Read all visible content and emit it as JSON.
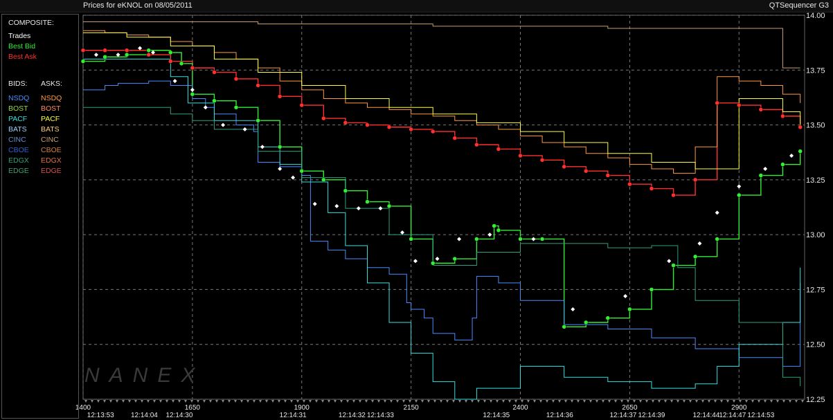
{
  "header": {
    "title_left": "Prices for  eKNOL  on  08/05/2011",
    "title_right": "QTSequencer G3"
  },
  "legend": {
    "composite_heading": "COMPOSITE:",
    "composite": [
      {
        "label": "Trades",
        "color": "#ffffff"
      },
      {
        "label": "Best Bid",
        "color": "#33ee33"
      },
      {
        "label": "Best Ask",
        "color": "#ff3030"
      }
    ],
    "bids_heading": "BIDS:",
    "asks_heading": "ASKS:",
    "exchanges": [
      {
        "bid": "NSDQ",
        "ask": "NSDQ",
        "bid_color": "#4a8cff",
        "ask_color": "#ff9a40"
      },
      {
        "bid": "BOST",
        "ask": "BOST",
        "bid_color": "#9ad84a",
        "ask_color": "#ff8a5a"
      },
      {
        "bid": "PACF",
        "ask": "PACF",
        "bid_color": "#38e0e0",
        "ask_color": "#ffff40"
      },
      {
        "bid": "BATS",
        "ask": "BATS",
        "bid_color": "#9fd0ff",
        "ask_color": "#ffd070"
      },
      {
        "bid": "CINC",
        "ask": "CINC",
        "bid_color": "#6a8cc8",
        "ask_color": "#c8a070"
      },
      {
        "bid": "CBOE",
        "ask": "CBOE",
        "bid_color": "#3060d0",
        "ask_color": "#d08040"
      },
      {
        "bid": "EDGX",
        "ask": "EDGX",
        "bid_color": "#30a080",
        "ask_color": "#e07040"
      },
      {
        "bid": "EDGE",
        "ask": "EDGE",
        "bid_color": "#40a070",
        "ask_color": "#d05050"
      }
    ]
  },
  "watermark": "NANEX",
  "chart_data": {
    "type": "line",
    "ylim": [
      12.25,
      14.0
    ],
    "xlim": [
      1400,
      3050
    ],
    "y_ticks": [
      "12.25",
      "12.50",
      "12.75",
      "13.00",
      "13.25",
      "13.50",
      "13.75",
      "14.00"
    ],
    "x_ticks": [
      "1400",
      "1650",
      "1900",
      "2150",
      "2400",
      "2650",
      "2900"
    ],
    "time_labels": [
      {
        "x": 1440,
        "t": "12:13:53"
      },
      {
        "x": 1540,
        "t": "12:14:04"
      },
      {
        "x": 1620,
        "t": "12:14:30"
      },
      {
        "x": 1880,
        "t": "12:14:31"
      },
      {
        "x": 2015,
        "t": "12:14:32"
      },
      {
        "x": 2080,
        "t": "12:14:33"
      },
      {
        "x": 2345,
        "t": "12:14:35"
      },
      {
        "x": 2490,
        "t": "12:14:36"
      },
      {
        "x": 2635,
        "t": "12:14:37"
      },
      {
        "x": 2700,
        "t": "12:14:39"
      },
      {
        "x": 2825,
        "t": "12:14:44"
      },
      {
        "x": 2885,
        "t": "12:14:47"
      },
      {
        "x": 2950,
        "t": "12:14:53"
      }
    ],
    "series": [
      {
        "name": "Best Ask",
        "color": "#ff3030",
        "x": [
          1400,
          1450,
          1500,
          1550,
          1600,
          1650,
          1700,
          1750,
          1800,
          1850,
          1900,
          1950,
          2000,
          2050,
          2100,
          2150,
          2200,
          2250,
          2300,
          2350,
          2400,
          2450,
          2500,
          2550,
          2600,
          2650,
          2700,
          2750,
          2800,
          2850,
          2900,
          2950,
          3000,
          3040
        ],
        "y": [
          13.84,
          13.84,
          13.84,
          13.82,
          13.79,
          13.76,
          13.74,
          13.71,
          13.68,
          13.63,
          13.59,
          13.53,
          13.51,
          13.5,
          13.49,
          13.48,
          13.47,
          13.44,
          13.41,
          13.39,
          13.36,
          13.34,
          13.31,
          13.29,
          13.27,
          13.23,
          13.21,
          13.18,
          13.25,
          13.6,
          13.59,
          13.57,
          13.54,
          13.49
        ]
      },
      {
        "name": "Best Bid",
        "color": "#33ee33",
        "x": [
          1400,
          1450,
          1500,
          1550,
          1600,
          1625,
          1650,
          1700,
          1750,
          1800,
          1850,
          1900,
          1950,
          2000,
          2050,
          2100,
          2150,
          2200,
          2250,
          2300,
          2340,
          2350,
          2400,
          2450,
          2500,
          2550,
          2600,
          2650,
          2700,
          2750,
          2800,
          2850,
          2900,
          2950,
          3000,
          3040
        ],
        "y": [
          13.79,
          13.81,
          13.82,
          13.84,
          13.83,
          13.78,
          13.64,
          13.61,
          13.58,
          13.52,
          13.4,
          13.29,
          13.25,
          13.2,
          13.15,
          13.13,
          12.98,
          12.87,
          12.89,
          12.98,
          13.04,
          13.02,
          12.98,
          12.98,
          12.58,
          12.6,
          12.62,
          12.66,
          12.75,
          12.86,
          12.9,
          12.98,
          13.18,
          13.27,
          13.32,
          13.38
        ]
      },
      {
        "name": "Trades",
        "color": "#ffffff",
        "x": [
          1430,
          1480,
          1530,
          1560,
          1610,
          1650,
          1680,
          1720,
          1770,
          1810,
          1850,
          1880,
          1930,
          1980,
          2030,
          2080,
          2130,
          2160,
          2210,
          2260,
          2330,
          2430,
          2520,
          2640,
          2740,
          2810,
          2850,
          2900,
          2960,
          3020
        ],
        "y": [
          13.82,
          13.82,
          13.85,
          13.83,
          13.7,
          13.66,
          13.58,
          13.5,
          13.48,
          13.4,
          13.3,
          13.26,
          13.14,
          13.13,
          13.12,
          13.12,
          13.01,
          12.88,
          12.89,
          12.98,
          13.0,
          12.98,
          12.66,
          12.72,
          12.88,
          12.96,
          13.1,
          13.22,
          13.3,
          13.36
        ]
      },
      {
        "name": "NSDQ",
        "color": "#4a8cff",
        "x": [
          1400,
          1450,
          1480,
          1550,
          1600,
          1650,
          1680,
          1700,
          1750,
          1790,
          1800,
          1850,
          1900,
          1920,
          1960,
          2000,
          2050,
          2100,
          2140,
          2150,
          2180,
          2200,
          2250,
          2290,
          2300,
          2350,
          2400,
          2500,
          2600,
          2700,
          2800,
          2900,
          3000,
          3040
        ],
        "y": [
          13.66,
          13.68,
          13.69,
          13.7,
          13.68,
          13.62,
          13.58,
          13.55,
          13.5,
          13.47,
          13.33,
          13.31,
          13.27,
          12.97,
          12.93,
          12.89,
          12.85,
          12.82,
          12.69,
          12.66,
          12.62,
          12.55,
          12.52,
          12.62,
          12.81,
          12.78,
          12.7,
          12.59,
          12.57,
          12.53,
          12.48,
          12.44,
          12.4,
          12.78
        ]
      },
      {
        "name": "PACF",
        "color": "#38e0e0",
        "x": [
          1400,
          1500,
          1600,
          1640,
          1700,
          1800,
          1850,
          1900,
          1960,
          2000,
          2050,
          2100,
          2150,
          2200,
          2250,
          2300,
          2400,
          2500,
          2600,
          2700,
          2800,
          2850,
          2900,
          3000,
          3040
        ],
        "y": [
          13.8,
          13.8,
          13.72,
          13.6,
          13.52,
          13.4,
          13.32,
          13.24,
          13.1,
          12.95,
          12.78,
          12.6,
          12.46,
          12.33,
          12.25,
          12.3,
          12.4,
          12.35,
          12.33,
          12.3,
          12.32,
          12.4,
          12.5,
          12.6,
          12.85
        ]
      },
      {
        "name": "EDGX",
        "color": "#30a080",
        "x": [
          1400,
          1500,
          1600,
          1650,
          1700,
          1800,
          1900,
          2000,
          2100,
          2200,
          2300,
          2400,
          2500,
          2600,
          2700,
          2760,
          2800,
          2900,
          3000,
          3040
        ],
        "y": [
          13.58,
          13.58,
          13.55,
          13.52,
          13.48,
          13.38,
          13.26,
          13.12,
          13.0,
          12.86,
          12.92,
          12.96,
          12.96,
          12.94,
          12.95,
          12.85,
          12.7,
          12.6,
          12.35,
          12.31
        ]
      },
      {
        "name": "NSDQ",
        "color": "#ff9a40",
        "x": [
          1400,
          1450,
          1500,
          1550,
          1600,
          1650,
          1700,
          1750,
          1800,
          1850,
          1900,
          1950,
          2000,
          2050,
          2100,
          2150,
          2200,
          2250,
          2300,
          2350,
          2400,
          2450,
          2500,
          2550,
          2600,
          2650,
          2700,
          2750,
          2800,
          2850,
          2900,
          2950,
          3000,
          3040
        ],
        "y": [
          13.93,
          13.92,
          13.91,
          13.9,
          13.88,
          13.86,
          13.83,
          13.8,
          13.76,
          13.7,
          13.66,
          13.62,
          13.6,
          13.58,
          13.57,
          13.55,
          13.54,
          13.52,
          13.5,
          13.48,
          13.45,
          13.42,
          13.4,
          13.37,
          13.35,
          13.32,
          13.3,
          13.28,
          13.4,
          13.72,
          13.7,
          13.68,
          13.64,
          13.6
        ]
      },
      {
        "name": "CINC",
        "color": "#c8a070",
        "x": [
          1400,
          1600,
          1800,
          2000,
          2200,
          2400,
          2600,
          2800,
          3000,
          3040
        ],
        "y": [
          13.97,
          13.97,
          13.96,
          13.96,
          13.95,
          13.95,
          13.94,
          13.94,
          13.76,
          13.76
        ]
      },
      {
        "name": "PACF",
        "color": "#ffff40",
        "x": [
          1400,
          1500,
          1600,
          1700,
          1800,
          1900,
          2000,
          2100,
          2200,
          2300,
          2400,
          2500,
          2600,
          2700,
          2800,
          2900,
          3000,
          3040
        ],
        "y": [
          13.92,
          13.9,
          13.86,
          13.8,
          13.74,
          13.68,
          13.62,
          13.58,
          13.55,
          13.51,
          13.47,
          13.42,
          13.37,
          13.33,
          13.3,
          13.62,
          13.56,
          13.5
        ]
      }
    ]
  }
}
